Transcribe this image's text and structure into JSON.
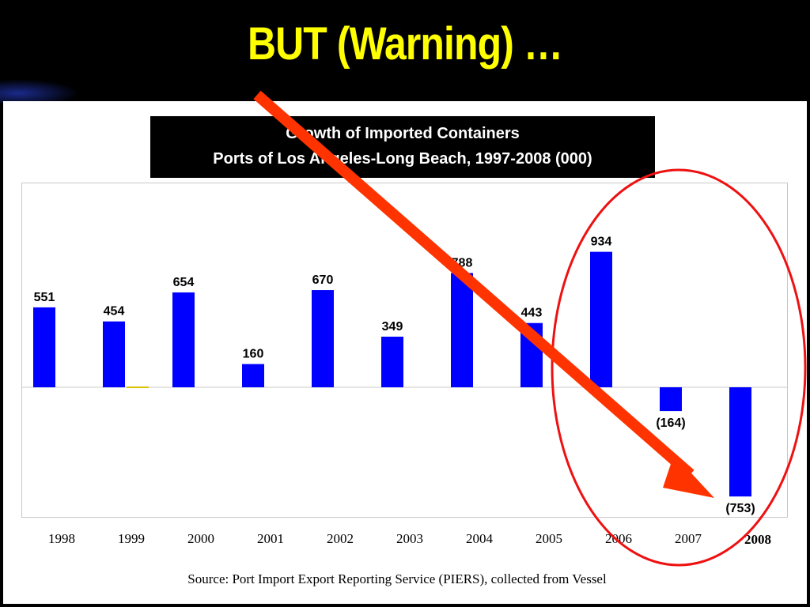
{
  "slide": {
    "title": "BUT (Warning) …",
    "source": "Source:  Port Import Export Reporting Service (PIERS), collected from Vessel"
  },
  "chart_data": {
    "type": "bar",
    "title": "Growth of Imported Containers",
    "subtitle": "Ports of Los Angeles-Long Beach, 1997-2008 (000)",
    "categories": [
      "1998",
      "1999",
      "2000",
      "2001",
      "2002",
      "2003",
      "2004",
      "2005",
      "2006",
      "2007",
      "2008"
    ],
    "values": [
      551,
      454,
      654,
      160,
      670,
      349,
      788,
      443,
      934,
      -164,
      -753
    ],
    "data_labels": [
      "551",
      "454",
      "654",
      "160",
      "670",
      "349",
      "788",
      "443",
      "934",
      "(164)",
      "(753)"
    ],
    "bold_categories": [
      "2008"
    ],
    "ylim": [
      -900,
      1300
    ],
    "xlabel": "",
    "ylabel": "",
    "grid": false,
    "colors": {
      "bar": "#0000ff",
      "title_text": "#ffff00",
      "arrow": "#ff3300",
      "circle": "#ee1111",
      "axis_line": "#c8c8c8"
    },
    "annotations": [
      {
        "kind": "arrow",
        "from_category": "2001",
        "to_category": "2008"
      },
      {
        "kind": "circle",
        "around_categories": [
          "2006",
          "2007",
          "2008"
        ]
      }
    ]
  }
}
